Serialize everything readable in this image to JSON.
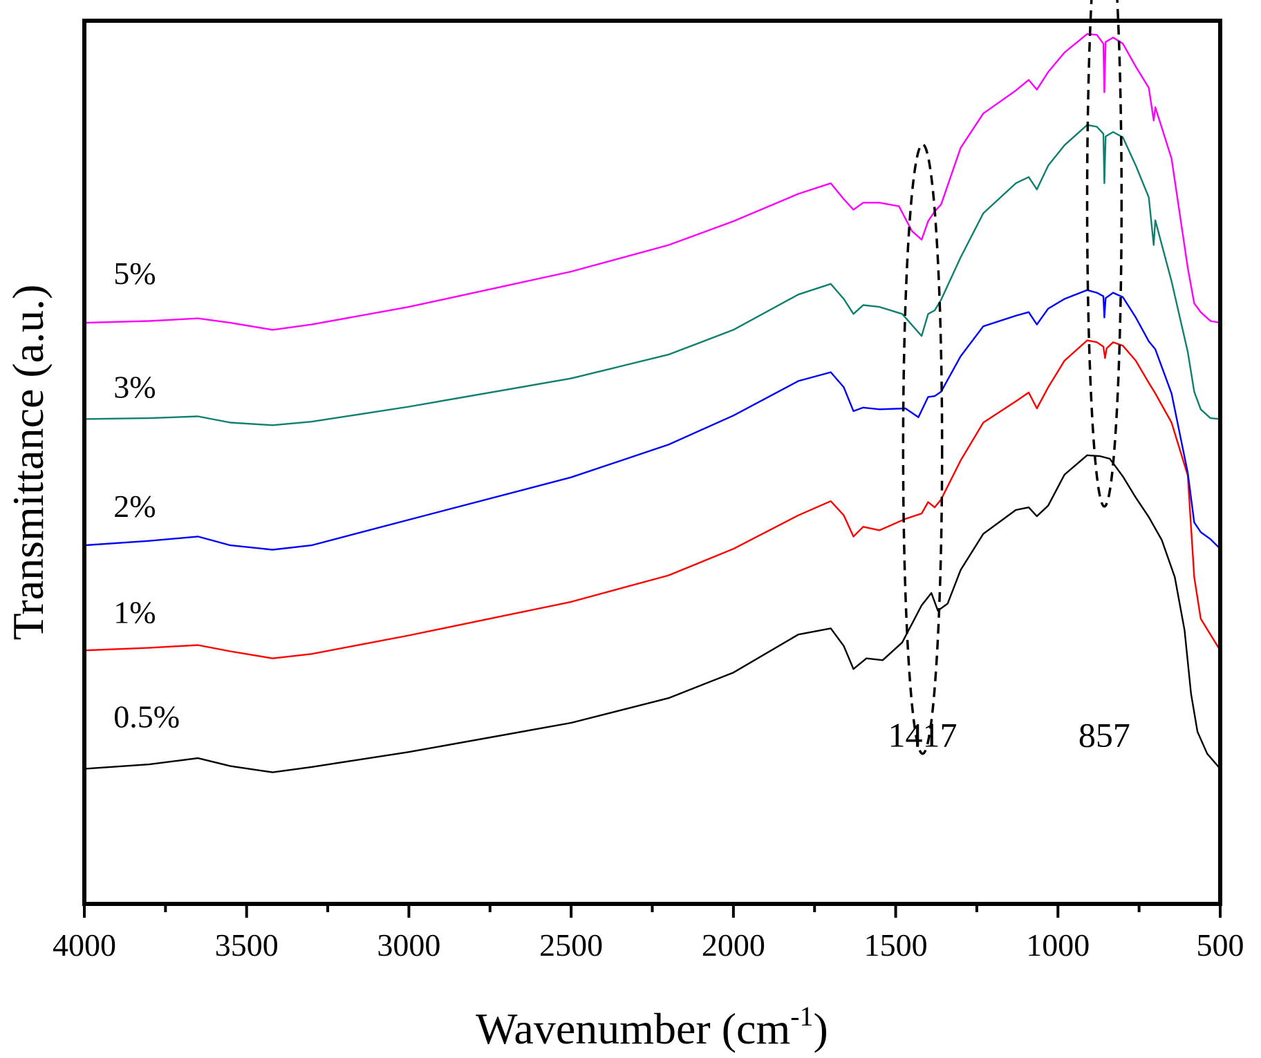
{
  "chart_data": {
    "type": "line",
    "title": "",
    "xlabel": "Wavenumber (cm",
    "xlabel_sup": "-1",
    "xlabel_close": ")",
    "ylabel": "Transmittance (a.u.)",
    "xlim": [
      4000,
      500
    ],
    "ylim": [
      0,
      100
    ],
    "xticks": [
      4000,
      3500,
      3000,
      2500,
      2000,
      1500,
      1000,
      500
    ],
    "xtick_labels": [
      "4000",
      "3500",
      "3000",
      "2500",
      "2000",
      "1500",
      "1000",
      "500"
    ],
    "y_ticks_shown": false,
    "grid": false,
    "series": [
      {
        "name": "0.5%",
        "color": "#000000",
        "points": [
          [
            4000,
            15.3
          ],
          [
            3800,
            15.8
          ],
          [
            3650,
            16.5
          ],
          [
            3550,
            15.6
          ],
          [
            3420,
            14.9
          ],
          [
            3300,
            15.5
          ],
          [
            3000,
            17.2
          ],
          [
            2500,
            20.5
          ],
          [
            2200,
            23.3
          ],
          [
            2000,
            26.2
          ],
          [
            1800,
            30.5
          ],
          [
            1700,
            31.2
          ],
          [
            1660,
            29.2
          ],
          [
            1630,
            26.6
          ],
          [
            1590,
            27.8
          ],
          [
            1540,
            27.6
          ],
          [
            1480,
            29.6
          ],
          [
            1420,
            33.8
          ],
          [
            1390,
            35.2
          ],
          [
            1370,
            33.2
          ],
          [
            1340,
            34.0
          ],
          [
            1300,
            37.8
          ],
          [
            1230,
            41.9
          ],
          [
            1130,
            44.6
          ],
          [
            1090,
            44.9
          ],
          [
            1065,
            43.9
          ],
          [
            1030,
            45.1
          ],
          [
            980,
            48.6
          ],
          [
            910,
            50.8
          ],
          [
            870,
            50.7
          ],
          [
            840,
            50.4
          ],
          [
            800,
            48.4
          ],
          [
            760,
            46.0
          ],
          [
            720,
            43.8
          ],
          [
            680,
            41.2
          ],
          [
            640,
            37.0
          ],
          [
            610,
            31.0
          ],
          [
            590,
            23.8
          ],
          [
            570,
            19.5
          ],
          [
            540,
            17.0
          ],
          [
            500,
            15.3
          ]
        ]
      },
      {
        "name": "1%",
        "color": "#ff0000",
        "points": [
          [
            4000,
            28.7
          ],
          [
            3800,
            29.0
          ],
          [
            3650,
            29.3
          ],
          [
            3550,
            28.6
          ],
          [
            3420,
            27.8
          ],
          [
            3300,
            28.3
          ],
          [
            3000,
            30.4
          ],
          [
            2500,
            34.2
          ],
          [
            2200,
            37.2
          ],
          [
            2000,
            40.2
          ],
          [
            1800,
            44.0
          ],
          [
            1700,
            45.6
          ],
          [
            1660,
            44.0
          ],
          [
            1630,
            41.6
          ],
          [
            1600,
            42.7
          ],
          [
            1550,
            42.3
          ],
          [
            1470,
            43.6
          ],
          [
            1420,
            44.2
          ],
          [
            1400,
            45.5
          ],
          [
            1380,
            44.9
          ],
          [
            1360,
            45.8
          ],
          [
            1300,
            50.2
          ],
          [
            1230,
            54.5
          ],
          [
            1130,
            56.9
          ],
          [
            1090,
            57.9
          ],
          [
            1065,
            56.1
          ],
          [
            1030,
            58.5
          ],
          [
            980,
            61.5
          ],
          [
            910,
            63.8
          ],
          [
            880,
            63.6
          ],
          [
            860,
            63.1
          ],
          [
            855,
            61.8
          ],
          [
            850,
            62.9
          ],
          [
            830,
            63.6
          ],
          [
            800,
            63.2
          ],
          [
            760,
            61.5
          ],
          [
            720,
            59.0
          ],
          [
            700,
            57.8
          ],
          [
            650,
            54.5
          ],
          [
            600,
            48.5
          ],
          [
            580,
            37.0
          ],
          [
            560,
            32.3
          ],
          [
            530,
            30.5
          ],
          [
            500,
            28.7
          ]
        ]
      },
      {
        "name": "2%",
        "color": "#0000ff",
        "points": [
          [
            4000,
            40.6
          ],
          [
            3800,
            41.1
          ],
          [
            3650,
            41.6
          ],
          [
            3550,
            40.6
          ],
          [
            3420,
            40.1
          ],
          [
            3300,
            40.6
          ],
          [
            3000,
            43.5
          ],
          [
            2500,
            48.3
          ],
          [
            2200,
            52.0
          ],
          [
            2000,
            55.3
          ],
          [
            1800,
            59.2
          ],
          [
            1700,
            60.2
          ],
          [
            1660,
            58.5
          ],
          [
            1630,
            55.8
          ],
          [
            1600,
            56.2
          ],
          [
            1550,
            56.0
          ],
          [
            1470,
            56.1
          ],
          [
            1430,
            55.1
          ],
          [
            1400,
            57.4
          ],
          [
            1380,
            57.5
          ],
          [
            1360,
            58.0
          ],
          [
            1300,
            62.0
          ],
          [
            1230,
            65.4
          ],
          [
            1130,
            66.6
          ],
          [
            1090,
            67.0
          ],
          [
            1065,
            65.6
          ],
          [
            1030,
            67.4
          ],
          [
            980,
            68.5
          ],
          [
            910,
            69.5
          ],
          [
            880,
            69.2
          ],
          [
            860,
            68.8
          ],
          [
            857,
            66.4
          ],
          [
            853,
            68.6
          ],
          [
            830,
            69.2
          ],
          [
            800,
            68.7
          ],
          [
            760,
            66.4
          ],
          [
            720,
            63.7
          ],
          [
            700,
            62.8
          ],
          [
            650,
            57.8
          ],
          [
            600,
            48.8
          ],
          [
            580,
            43.2
          ],
          [
            560,
            42.1
          ],
          [
            530,
            41.3
          ],
          [
            500,
            40.2
          ]
        ]
      },
      {
        "name": "3%",
        "color": "#0f7f6f",
        "points": [
          [
            4000,
            54.9
          ],
          [
            3800,
            55.0
          ],
          [
            3650,
            55.2
          ],
          [
            3550,
            54.5
          ],
          [
            3420,
            54.2
          ],
          [
            3300,
            54.6
          ],
          [
            3000,
            56.3
          ],
          [
            2500,
            59.5
          ],
          [
            2200,
            62.2
          ],
          [
            2000,
            65.0
          ],
          [
            1800,
            69.0
          ],
          [
            1700,
            70.2
          ],
          [
            1660,
            68.5
          ],
          [
            1630,
            66.8
          ],
          [
            1600,
            67.8
          ],
          [
            1550,
            67.6
          ],
          [
            1480,
            66.8
          ],
          [
            1420,
            64.3
          ],
          [
            1400,
            66.8
          ],
          [
            1380,
            67.2
          ],
          [
            1360,
            68.4
          ],
          [
            1300,
            73.2
          ],
          [
            1230,
            78.2
          ],
          [
            1130,
            81.6
          ],
          [
            1090,
            82.3
          ],
          [
            1065,
            80.9
          ],
          [
            1030,
            83.6
          ],
          [
            980,
            85.9
          ],
          [
            910,
            88.2
          ],
          [
            880,
            88.0
          ],
          [
            860,
            87.2
          ],
          [
            857,
            81.6
          ],
          [
            853,
            86.9
          ],
          [
            830,
            87.4
          ],
          [
            800,
            86.8
          ],
          [
            760,
            83.6
          ],
          [
            720,
            80.0
          ],
          [
            705,
            74.6
          ],
          [
            700,
            77.4
          ],
          [
            650,
            70.5
          ],
          [
            600,
            62.5
          ],
          [
            580,
            58.0
          ],
          [
            560,
            56.0
          ],
          [
            530,
            55.0
          ],
          [
            500,
            54.9
          ]
        ]
      },
      {
        "name": "5%",
        "color": "#ff00ff",
        "points": [
          [
            4000,
            65.8
          ],
          [
            3800,
            66.0
          ],
          [
            3650,
            66.3
          ],
          [
            3550,
            65.8
          ],
          [
            3420,
            65.0
          ],
          [
            3300,
            65.6
          ],
          [
            3000,
            67.6
          ],
          [
            2500,
            71.6
          ],
          [
            2200,
            74.6
          ],
          [
            2000,
            77.3
          ],
          [
            1800,
            80.4
          ],
          [
            1700,
            81.6
          ],
          [
            1660,
            79.8
          ],
          [
            1630,
            78.6
          ],
          [
            1600,
            79.4
          ],
          [
            1550,
            79.4
          ],
          [
            1490,
            79.0
          ],
          [
            1450,
            76.2
          ],
          [
            1420,
            75.2
          ],
          [
            1400,
            77.3
          ],
          [
            1380,
            78.4
          ],
          [
            1360,
            79.2
          ],
          [
            1300,
            85.6
          ],
          [
            1230,
            89.5
          ],
          [
            1130,
            92.1
          ],
          [
            1090,
            93.3
          ],
          [
            1065,
            92.2
          ],
          [
            1030,
            94.2
          ],
          [
            980,
            96.4
          ],
          [
            910,
            98.5
          ],
          [
            880,
            98.4
          ],
          [
            860,
            97.4
          ],
          [
            857,
            91.9
          ],
          [
            853,
            97.6
          ],
          [
            830,
            98.1
          ],
          [
            800,
            97.4
          ],
          [
            760,
            94.8
          ],
          [
            720,
            92.4
          ],
          [
            705,
            88.7
          ],
          [
            700,
            90.2
          ],
          [
            650,
            84.4
          ],
          [
            600,
            72.0
          ],
          [
            580,
            68.0
          ],
          [
            560,
            67.0
          ],
          [
            530,
            66.0
          ],
          [
            500,
            65.8
          ]
        ]
      }
    ],
    "series_labels": [
      {
        "text": "5%",
        "x": 3910,
        "y": 70.2
      },
      {
        "text": "3%",
        "x": 3910,
        "y": 57.3
      },
      {
        "text": "2%",
        "x": 3910,
        "y": 43.8
      },
      {
        "text": "1%",
        "x": 3910,
        "y": 31.8
      },
      {
        "text": "0.5%",
        "x": 3910,
        "y": 20.0
      }
    ],
    "annotations": [
      {
        "text": "1417",
        "x": 1417,
        "y": 17.8,
        "ellipse_center": [
          1417,
          51.5
        ],
        "ellipse_semi_axes": [
          60,
          34.5
        ]
      },
      {
        "text": "857",
        "x": 857,
        "y": 17.8,
        "ellipse_center": [
          857,
          79.5
        ],
        "ellipse_semi_axes": [
          53,
          34.5
        ]
      }
    ]
  }
}
